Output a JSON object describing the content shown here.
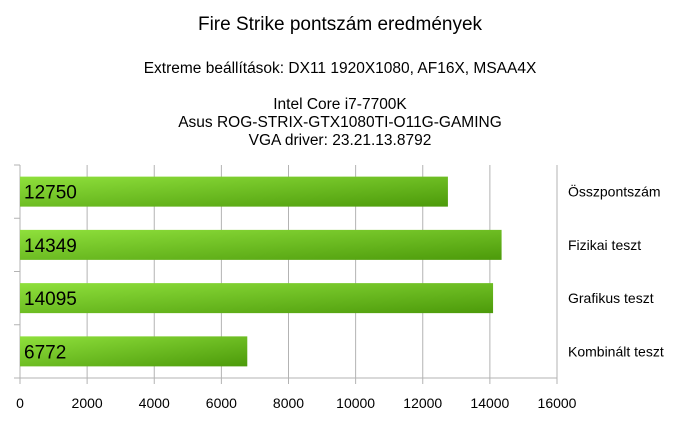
{
  "chart_data": {
    "type": "bar",
    "orientation": "horizontal",
    "title": "Fire Strike pontszám eredmények",
    "subtitle": "Extreme beállítások: DX11 1920X1080, AF16X, MSAA4X",
    "info_lines": [
      "Intel Core i7-7700K",
      "Asus ROG-STRIX-GTX1080TI-O11G-GAMING",
      "VGA driver: 23.21.13.8792"
    ],
    "categories": [
      "Összpontszám",
      "Fizikai teszt",
      "Grafikus teszt",
      "Kombinált teszt"
    ],
    "values": [
      12750,
      14349,
      14095,
      6772
    ],
    "data_labels": [
      "12750",
      "14349",
      "14095",
      "6772"
    ],
    "x_ticks": [
      "0",
      "2000",
      "4000",
      "6000",
      "8000",
      "10000",
      "12000",
      "14000",
      "16000"
    ],
    "xlim": [
      0,
      16000
    ],
    "grid": true,
    "category_labels_position": "right",
    "bar_colors": [
      "#8fe03c",
      "#4c9a0a"
    ]
  }
}
